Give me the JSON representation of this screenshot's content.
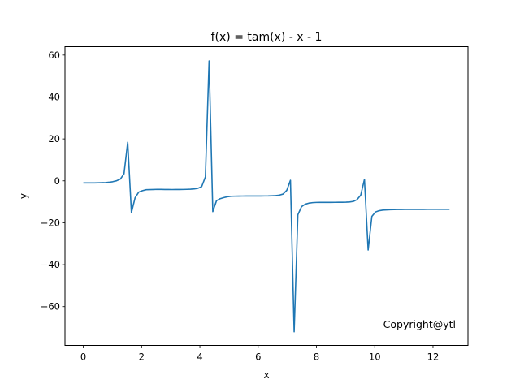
{
  "chart_data": {
    "type": "line",
    "title": "f(x) = tam(x) - x - 1",
    "xlabel": "x",
    "ylabel": "y",
    "xlim": [
      -0.63,
      13.2
    ],
    "ylim": [
      -78.5,
      64.0
    ],
    "xticks": [
      0,
      2,
      4,
      6,
      8,
      10,
      12
    ],
    "yticks": [
      -60,
      -40,
      -20,
      0,
      20,
      40,
      60
    ],
    "grid": false,
    "legend": "none",
    "annotation": "Copyright@ytl",
    "series": [
      {
        "color": "#1f77b4",
        "x": [
          0.0,
          0.127,
          0.254,
          0.381,
          0.508,
          0.635,
          0.762,
          0.888,
          1.015,
          1.142,
          1.269,
          1.396,
          1.523,
          1.65,
          1.777,
          1.904,
          2.031,
          2.158,
          2.285,
          2.412,
          2.539,
          2.666,
          2.793,
          2.92,
          3.046,
          3.173,
          3.3,
          3.427,
          3.554,
          3.681,
          3.808,
          3.935,
          4.062,
          4.189,
          4.316,
          4.443,
          4.57,
          4.697,
          4.823,
          4.95,
          5.077,
          5.204,
          5.331,
          5.458,
          5.585,
          5.712,
          5.839,
          5.966,
          6.093,
          6.22,
          6.347,
          6.474,
          6.601,
          6.727,
          6.854,
          6.981,
          7.108,
          7.235,
          7.362,
          7.489,
          7.616,
          7.743,
          7.87,
          7.997,
          8.124,
          8.251,
          8.378,
          8.504,
          8.631,
          8.758,
          8.885,
          9.012,
          9.139,
          9.266,
          9.393,
          9.52,
          9.647,
          9.774,
          9.901,
          10.028,
          10.155,
          10.281,
          10.408,
          10.535,
          10.662,
          10.789,
          10.916,
          11.043,
          11.17,
          11.297,
          11.424,
          11.551,
          11.678,
          11.805,
          11.932,
          12.059,
          12.186,
          12.313,
          12.44,
          12.566
        ],
        "y": [
          -1.0,
          -1.0,
          -0.99,
          -0.98,
          -0.95,
          -0.9,
          -0.81,
          -0.66,
          -0.39,
          0.04,
          0.81,
          3.35,
          18.4,
          -15.2,
          -8.03,
          -5.36,
          -4.7,
          -4.23,
          -4.17,
          -4.12,
          -4.06,
          -4.09,
          -4.11,
          -4.13,
          -4.15,
          -4.13,
          -4.12,
          -4.1,
          -4.06,
          -3.98,
          -3.83,
          -3.54,
          -2.75,
          1.88,
          57.2,
          -14.7,
          -9.5,
          -8.5,
          -7.98,
          -7.56,
          -7.35,
          -7.3,
          -7.27,
          -7.25,
          -7.24,
          -7.24,
          -7.24,
          -7.24,
          -7.22,
          -7.2,
          -7.18,
          -7.12,
          -7.02,
          -6.82,
          -6.31,
          -4.54,
          0.27,
          -72.0,
          -16.2,
          -12.3,
          -11.14,
          -10.63,
          -10.4,
          -10.3,
          -10.27,
          -10.26,
          -10.26,
          -10.26,
          -10.25,
          -10.23,
          -10.21,
          -10.17,
          -10.07,
          -9.82,
          -8.96,
          -6.8,
          0.7,
          -33.0,
          -17.0,
          -14.83,
          -14.24,
          -13.97,
          -13.84,
          -13.75,
          -13.7,
          -13.67,
          -13.65,
          -13.64,
          -13.63,
          -13.62,
          -13.61,
          -13.6,
          -13.6,
          -13.59,
          -13.59,
          -13.58,
          -13.58,
          -13.57,
          -13.57,
          -13.57
        ]
      }
    ]
  }
}
